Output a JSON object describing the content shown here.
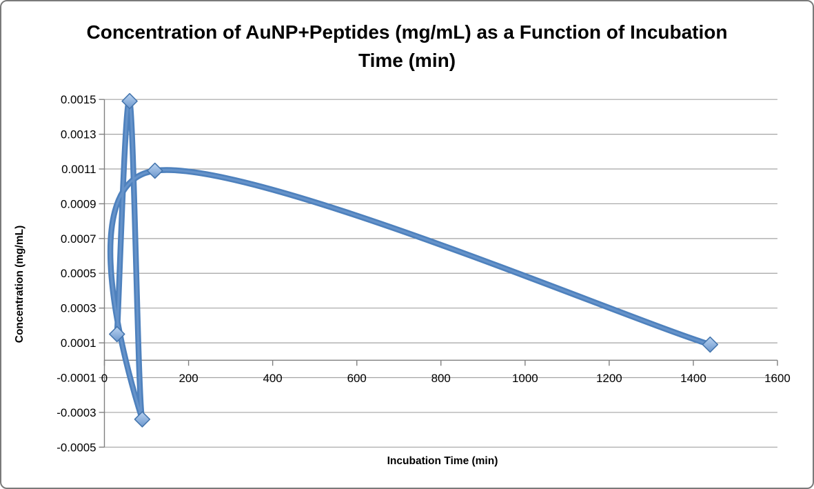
{
  "chart_data": {
    "type": "line",
    "smoothed": true,
    "marker": "diamond",
    "title": "Concentration of AuNP+Peptides (mg/mL) as a Function of Incubation Time (min)",
    "xlabel": "Incubation Time (min)",
    "ylabel": "Concentration (mg/mL)",
    "x": [
      30,
      60,
      90,
      120,
      1440
    ],
    "y": [
      0.00015,
      0.00149,
      -0.00034,
      0.00109,
      9e-05
    ],
    "xlim": [
      0,
      1600
    ],
    "ylim": [
      -0.0005,
      0.0015
    ],
    "x_ticks": [
      0,
      200,
      400,
      600,
      800,
      1000,
      1200,
      1400,
      1600
    ],
    "x_tick_labels": [
      "0",
      "200",
      "400",
      "600",
      "800",
      "1000",
      "1200",
      "1400",
      "1600"
    ],
    "y_ticks": [
      0.0015,
      0.0013,
      0.0011,
      0.0009,
      0.0007,
      0.0005,
      0.0003,
      0.0001,
      -0.0001,
      -0.0003,
      -0.0005
    ],
    "y_tick_labels": [
      "0.0015",
      "0.0013",
      "0.0011",
      "0.0009",
      "0.0007",
      "0.0005",
      "0.0003",
      "0.0001",
      "-0.0001",
      "-0.0003",
      "-0.0005"
    ],
    "grid": true,
    "legend": "none",
    "colors": {
      "line": "#4E81BD",
      "line_highlight": "#7EA6D8",
      "marker_fill_top": "#BAD3F1",
      "marker_fill_bottom": "#6C97CD",
      "marker_stroke": "#4576AE",
      "gridline": "#A3A3A3",
      "axis": "#7F7F7F",
      "text": "#000000"
    }
  }
}
